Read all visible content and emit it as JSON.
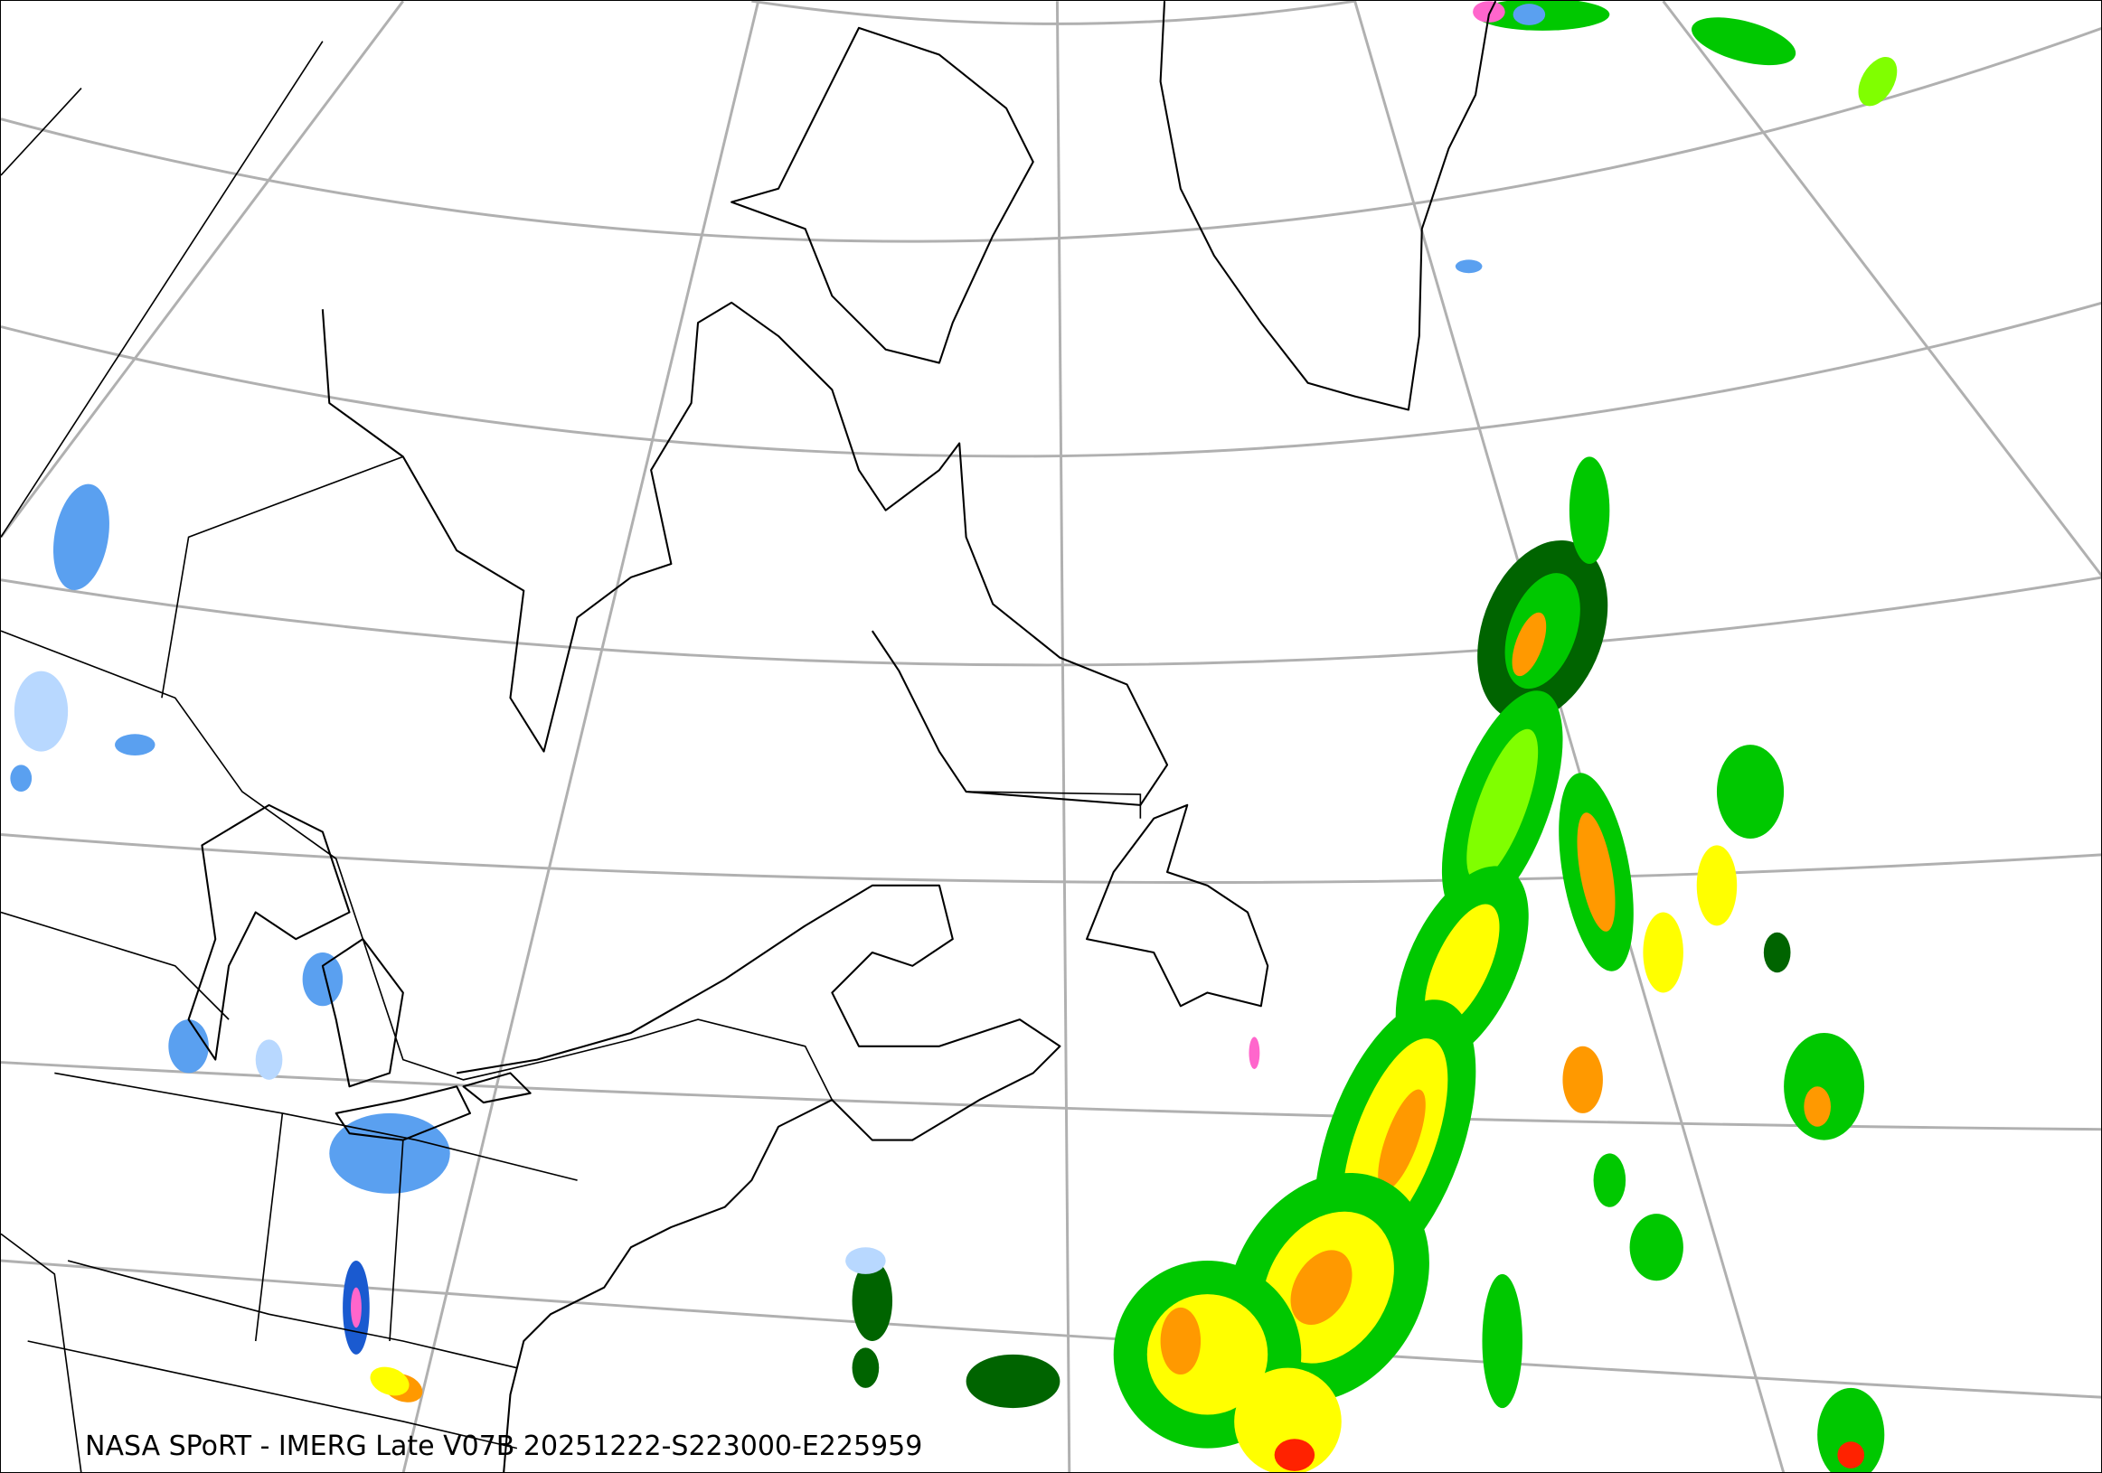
{
  "caption": "NASA SPoRT - IMERG Late V07B 20251222-S223000-E225959",
  "colors": {
    "graticule": "#b0b0b0",
    "coastline": "#000000",
    "snow_light": "#b8d8ff",
    "snow_mid": "#5aa0f0",
    "snow_heavy": "#1a5ad0",
    "mixed": "#ff66cc",
    "rain_dark": "#006400",
    "rain_green": "#00c800",
    "rain_light": "#80ff00",
    "rain_yellow": "#ffff00",
    "rain_orange": "#ff9900",
    "rain_red": "#ff2200"
  }
}
